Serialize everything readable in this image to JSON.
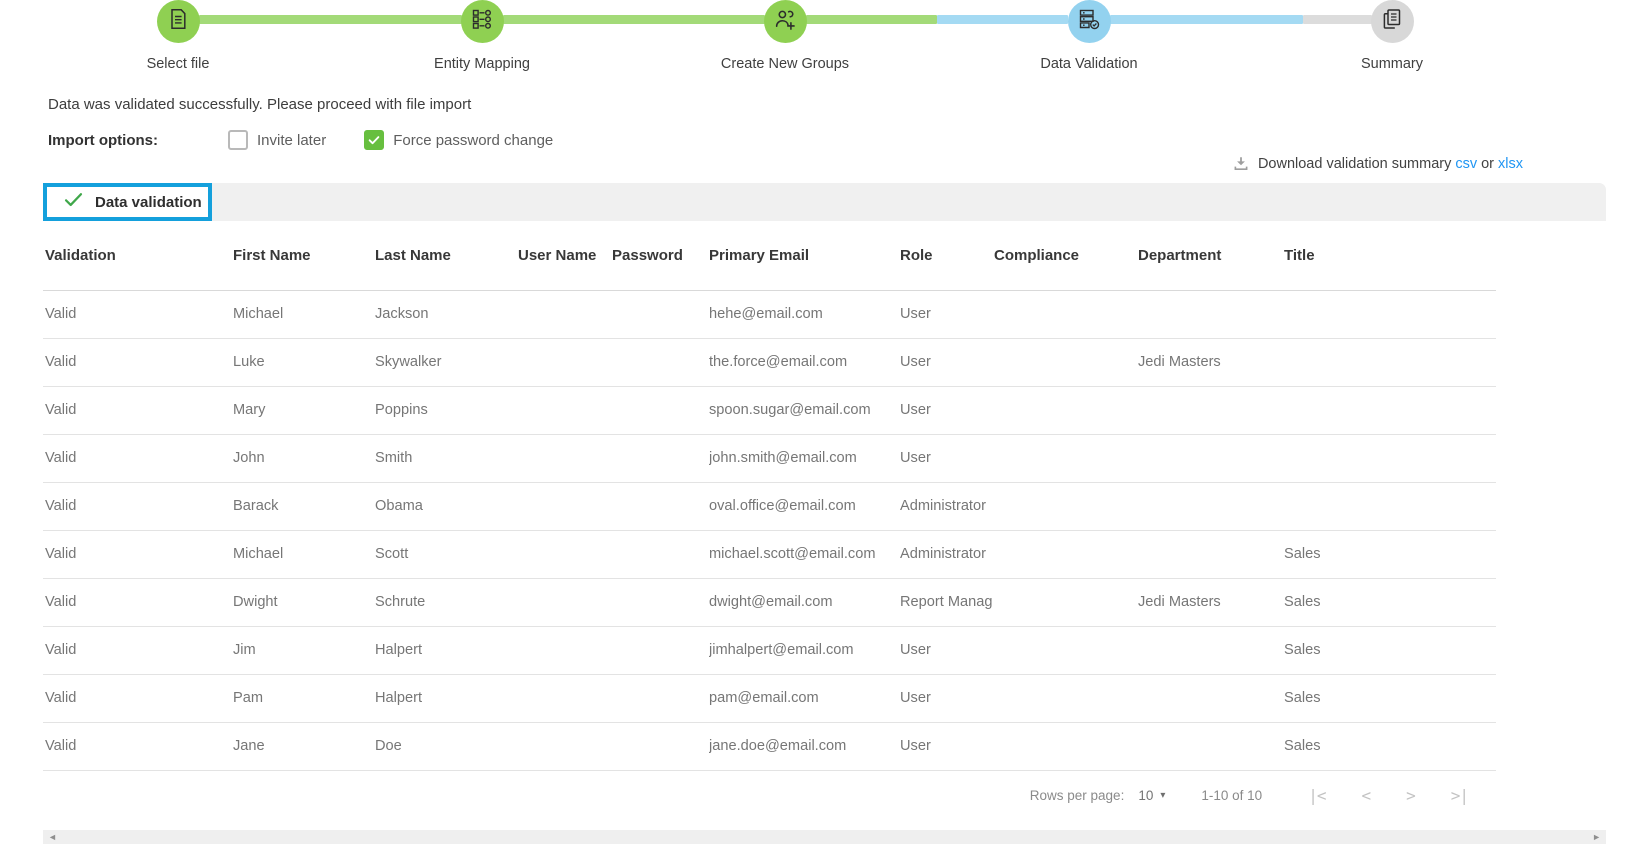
{
  "stepper": {
    "steps": [
      {
        "label": "Select file",
        "icon": "file-document-icon",
        "state": "completed"
      },
      {
        "label": "Entity Mapping",
        "icon": "entity-mapping-icon",
        "state": "completed"
      },
      {
        "label": "Create New Groups",
        "icon": "add-group-icon",
        "state": "completed"
      },
      {
        "label": "Data Validation",
        "icon": "data-validation-icon",
        "state": "current"
      },
      {
        "label": "Summary",
        "icon": "summary-icon",
        "state": "upcoming"
      }
    ],
    "colors": {
      "completed": "#8fd052",
      "current": "#93d2ef",
      "upcoming": "#d8d8d8"
    }
  },
  "status_message": "Data was validated successfully. Please proceed with file import",
  "import_options": {
    "label": "Import options:",
    "options": [
      {
        "label": "Invite later",
        "checked": false
      },
      {
        "label": "Force password change",
        "checked": true
      }
    ],
    "checked_color": "#67bf3f"
  },
  "download": {
    "icon": "download-icon",
    "label": "Download validation summary",
    "csv_link": "csv",
    "separator": "or",
    "xlsx_link": "xlsx",
    "link_color": "#2196f3"
  },
  "tab": {
    "label": "Data validation",
    "icon": "check-icon",
    "border_color": "#14a0dc",
    "check_color": "#3fa74a"
  },
  "table": {
    "columns": [
      "Validation",
      "First Name",
      "Last Name",
      "User Name",
      "Password",
      "Primary Email",
      "Role",
      "Compliance",
      "Department",
      "Title"
    ],
    "rows": [
      [
        "Valid",
        "Michael",
        "Jackson",
        "",
        "",
        "hehe@email.com",
        "User",
        "",
        "",
        ""
      ],
      [
        "Valid",
        "Luke",
        "Skywalker",
        "",
        "",
        "the.force@email.com",
        "User",
        "",
        "Jedi Masters",
        ""
      ],
      [
        "Valid",
        "Mary",
        "Poppins",
        "",
        "",
        "spoon.sugar@email.com",
        "User",
        "",
        "",
        ""
      ],
      [
        "Valid",
        "John",
        "Smith",
        "",
        "",
        "john.smith@email.com",
        "User",
        "",
        "",
        ""
      ],
      [
        "Valid",
        "Barack",
        "Obama",
        "",
        "",
        "oval.office@email.com",
        "Administrator",
        "",
        "",
        ""
      ],
      [
        "Valid",
        "Michael",
        "Scott",
        "",
        "",
        "michael.scott@email.com",
        "Administrator",
        "",
        "",
        "Sales"
      ],
      [
        "Valid",
        "Dwight",
        "Schrute",
        "",
        "",
        "dwight@email.com",
        "Report Manag…",
        "",
        "Jedi Masters",
        "Sales"
      ],
      [
        "Valid",
        "Jim",
        "Halpert",
        "",
        "",
        "jimhalpert@email.com",
        "User",
        "",
        "",
        "Sales"
      ],
      [
        "Valid",
        "Pam",
        "Halpert",
        "",
        "",
        "pam@email.com",
        "User",
        "",
        "",
        "Sales"
      ],
      [
        "Valid",
        "Jane",
        "Doe",
        "",
        "",
        "jane.doe@email.com",
        "User",
        "",
        "",
        "Sales"
      ]
    ]
  },
  "pagination": {
    "rows_per_page_label": "Rows per page:",
    "rows_per_page_value": "10",
    "caret_icon": "▾",
    "range": "1-10 of 10",
    "first_page_icon": "|<",
    "prev_page_icon": "<",
    "next_page_icon": ">",
    "last_page_icon": ">|"
  },
  "hscrollbar": {
    "left_icon": "◄",
    "right_icon": "►"
  }
}
